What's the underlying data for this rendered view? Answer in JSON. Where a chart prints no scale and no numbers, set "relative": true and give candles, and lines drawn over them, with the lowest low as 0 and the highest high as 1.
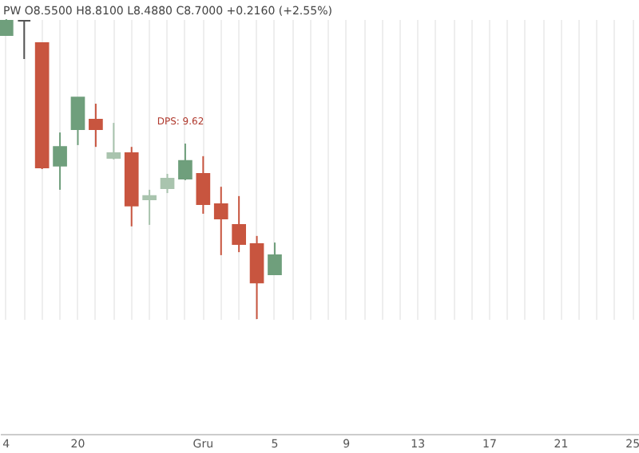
{
  "chart_data": {
    "type": "candlestick",
    "relative": true,
    "grid": "x",
    "categories": [
      "4",
      null,
      null,
      null,
      "20",
      null,
      null,
      null,
      null,
      null,
      null,
      "Gru",
      null,
      null,
      null,
      "5",
      null,
      null,
      null,
      "9",
      null,
      null,
      null,
      "13",
      null,
      null,
      null,
      "17",
      null,
      null,
      null,
      "21",
      null,
      null,
      null,
      "25"
    ],
    "ohlc": [
      [
        0.947,
        1,
        0.947,
        0.995
      ],
      [
        0.995,
        0.995,
        0.867,
        0.995
      ],
      [
        0.92,
        0.92,
        0.5,
        0.505
      ],
      [
        0.511,
        0.622,
        0.431,
        0.574
      ],
      [
        0.633,
        0.739,
        0.58,
        0.739
      ],
      [
        0.665,
        0.718,
        0.574,
        0.633
      ],
      [
        0.537,
        0.654,
        0.532,
        0.553
      ],
      [
        0.553,
        0.574,
        0.309,
        0.378
      ],
      [
        0.399,
        0.431,
        0.314,
        0.41
      ],
      [
        0.436,
        0.484,
        0.42,
        0.468
      ],
      [
        0.468,
        0.585,
        0.463,
        0.527
      ],
      [
        0.484,
        0.543,
        0.351,
        0.383
      ],
      [
        0.383,
        0.441,
        0.213,
        0.335
      ],
      [
        0.314,
        0.41,
        0.223,
        0.25
      ],
      [
        0.25,
        0.277,
        0,
        0.122
      ],
      [
        0.149,
        0.255,
        0.149,
        0.213
      ],
      null,
      null,
      null,
      null,
      null,
      null,
      null,
      null,
      null,
      null,
      null,
      null,
      null,
      null,
      null,
      null,
      null,
      null,
      null,
      null
    ],
    "colors": [
      "#6f9f7c",
      "#555555",
      "#c8553f",
      "#6f9f7c",
      "#6f9f7c",
      "#c8553f",
      "#a9c4ae",
      "#c8553f",
      "#a9c4ae",
      "#a9c4ae",
      "#6f9f7c",
      "#c8553f",
      "#c8553f",
      "#c8553f",
      "#c8553f",
      "#6f9f7c",
      null,
      null,
      null,
      null,
      null,
      null,
      null,
      null,
      null,
      null,
      null,
      null,
      null,
      null,
      null,
      null,
      null,
      null,
      null,
      null
    ],
    "annotations": [
      "PW  O8.5500  H8.8100  L8.4880  C8.7000  +0.2160 (+2.55%)",
      "DPS: 9.62"
    ]
  }
}
